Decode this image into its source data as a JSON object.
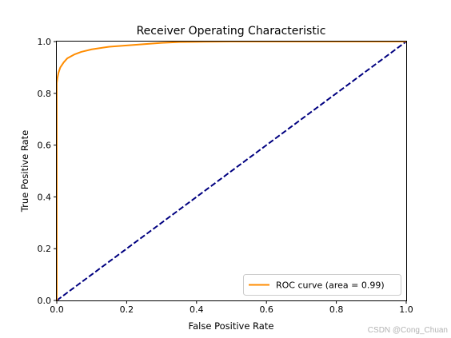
{
  "watermark": "CSDN @Cong_Chuan",
  "chart_data": {
    "type": "line",
    "title": "Receiver Operating Characteristic",
    "xlabel": "False Positive Rate",
    "ylabel": "True Positive Rate",
    "xlim": [
      0.0,
      1.0
    ],
    "ylim": [
      0.0,
      1.0
    ],
    "xticks": [
      "0.0",
      "0.2",
      "0.4",
      "0.6",
      "0.8",
      "1.0"
    ],
    "yticks": [
      "0.0",
      "0.2",
      "0.4",
      "0.6",
      "0.8",
      "1.0"
    ],
    "grid": false,
    "legend": {
      "position": "lower-right",
      "entries": [
        "ROC curve (area = 0.99)"
      ]
    },
    "series": [
      {
        "name": "ROC curve (area = 0.99)",
        "color": "#ff8c00",
        "style": "solid",
        "x": [
          0.0,
          0.0,
          0.002,
          0.005,
          0.01,
          0.02,
          0.03,
          0.05,
          0.07,
          0.1,
          0.15,
          0.2,
          0.25,
          0.3,
          0.35,
          0.4,
          0.5,
          0.6,
          0.7,
          0.8,
          0.9,
          1.0
        ],
        "y": [
          0.0,
          0.84,
          0.86,
          0.88,
          0.9,
          0.92,
          0.935,
          0.95,
          0.96,
          0.97,
          0.98,
          0.985,
          0.99,
          0.995,
          0.998,
          0.999,
          1.0,
          1.0,
          1.0,
          1.0,
          1.0,
          1.0
        ]
      },
      {
        "name": "",
        "color": "#000080",
        "style": "dashed",
        "x": [
          0.0,
          1.0
        ],
        "y": [
          0.0,
          1.0
        ]
      }
    ]
  }
}
